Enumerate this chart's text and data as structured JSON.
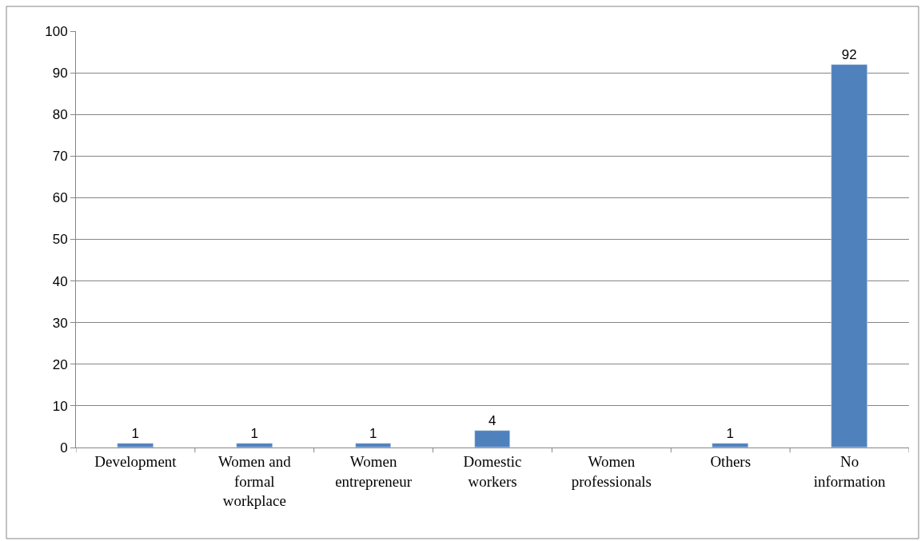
{
  "chart_data": {
    "type": "bar",
    "categories": [
      "Development",
      "Women and formal workplace",
      "Women entrepreneur",
      "Domestic workers",
      "Women professionals",
      "Others",
      "No information"
    ],
    "values": [
      1,
      1,
      1,
      4,
      null,
      1,
      92
    ],
    "value_labels": [
      "1",
      "1",
      "1",
      "4",
      null,
      "1",
      "92"
    ],
    "color": "#4f81bd",
    "ylim": [
      0,
      100
    ],
    "yticks": [
      0,
      10,
      20,
      30,
      40,
      50,
      60,
      70,
      80,
      90,
      100
    ],
    "grid": "y",
    "legend": false
  }
}
